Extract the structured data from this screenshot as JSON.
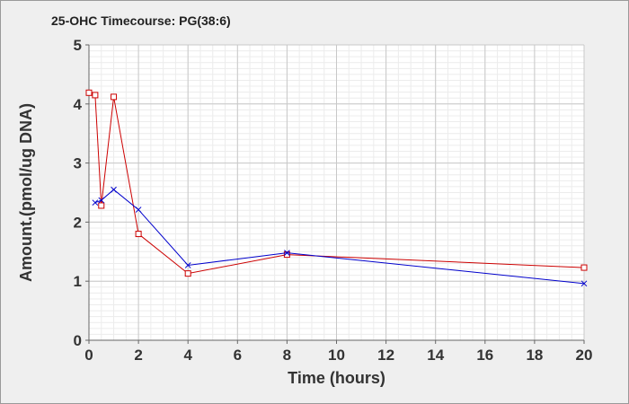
{
  "chart_data": {
    "type": "line",
    "title": "25-OHC Timecourse: PG(38:6)",
    "xlabel": "Time (hours)",
    "ylabel": "Amount.(pmol/ug DNA)",
    "xlim": [
      0,
      20
    ],
    "ylim": [
      0,
      5
    ],
    "xticks": [
      0,
      2,
      4,
      6,
      8,
      10,
      12,
      14,
      16,
      18,
      20
    ],
    "yticks": [
      0,
      1,
      2,
      3,
      4,
      5
    ],
    "grid": true,
    "legend": "none",
    "series": [
      {
        "color": "#cc0000",
        "marker": "square",
        "x": [
          0,
          0.25,
          0.5,
          1,
          2,
          4,
          8,
          20
        ],
        "y": [
          4.19,
          4.15,
          2.28,
          4.12,
          1.8,
          1.13,
          1.45,
          1.23
        ]
      },
      {
        "color": "#0000cc",
        "marker": "x",
        "x": [
          0.25,
          0.5,
          1,
          2,
          4,
          8,
          20
        ],
        "y": [
          2.33,
          2.37,
          2.55,
          2.21,
          1.27,
          1.48,
          0.96
        ]
      }
    ]
  }
}
